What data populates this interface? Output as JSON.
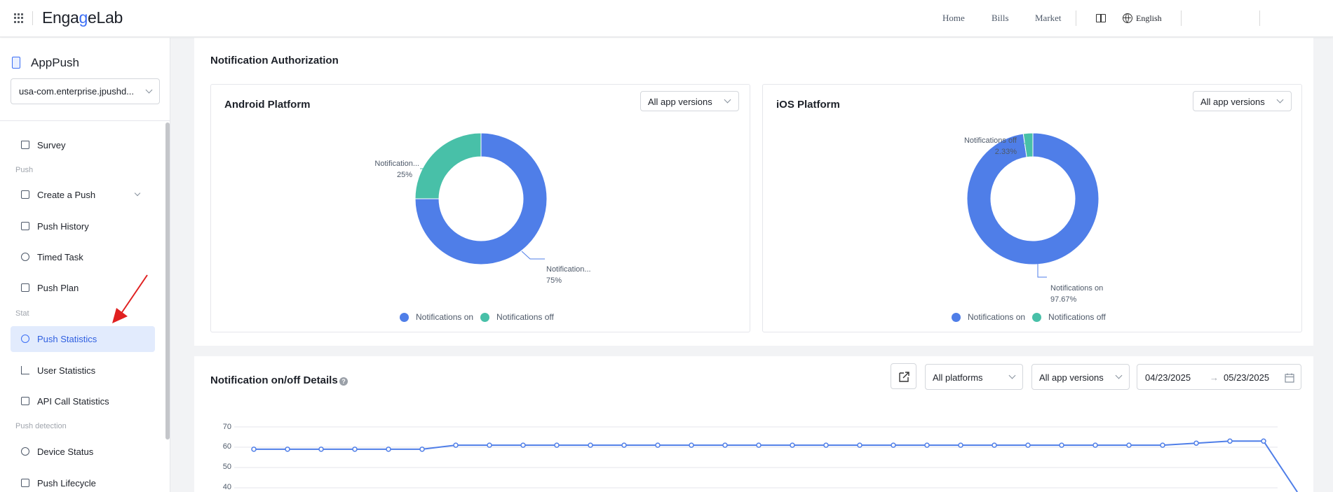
{
  "header": {
    "logo_prefix": "Enga",
    "logo_g": "g",
    "logo_suffix": "eLab",
    "nav": [
      "Home",
      "Bills",
      "Market"
    ],
    "language": "English"
  },
  "sidebar": {
    "app_title": "AppPush",
    "app_selector": "usa-com.enterprise.jpushd...",
    "groups": {
      "push": "Push",
      "stat": "Stat",
      "push_detection": "Push detection"
    },
    "items": [
      {
        "label": "Survey",
        "icon": "home-icon"
      },
      {
        "label": "Create a Push",
        "icon": "file-plus-icon"
      },
      {
        "label": "Push History",
        "icon": "file-history-icon"
      },
      {
        "label": "Timed Task",
        "icon": "clock-icon"
      },
      {
        "label": "Push Plan",
        "icon": "plan-icon"
      },
      {
        "label": "Push Statistics",
        "icon": "pie-icon",
        "active": true
      },
      {
        "label": "User Statistics",
        "icon": "bar-chart-icon"
      },
      {
        "label": "API Call Statistics",
        "icon": "monitor-icon"
      },
      {
        "label": "Device Status",
        "icon": "search-icon"
      },
      {
        "label": "Push Lifecycle",
        "icon": "lifecycle-icon"
      }
    ]
  },
  "authorization": {
    "title": "Notification Authorization",
    "android": {
      "title": "Android Platform",
      "version_select": "All app versions",
      "label_off": "Notification...",
      "pct_off": "25%",
      "label_on": "Notification...",
      "pct_on": "75%"
    },
    "ios": {
      "title": "iOS Platform",
      "version_select": "All app versions",
      "label_off": "Notifications off",
      "pct_off": "2.33%",
      "label_on": "Notifications on",
      "pct_on": "97.67%"
    },
    "legend_on": "Notifications on",
    "legend_off": "Notifications off",
    "colors": {
      "on": "#4f7ee8",
      "off": "#48c0a8"
    }
  },
  "details": {
    "title": "Notification on/off Details",
    "info": "?",
    "platform_select": "All platforms",
    "version_select": "All app versions",
    "date_start": "04/23/2025",
    "date_sep": "→",
    "date_end": "05/23/2025"
  },
  "chart_data": [
    {
      "type": "pie",
      "title": "Android Platform",
      "labels": [
        "Notifications on",
        "Notifications off"
      ],
      "values": [
        75,
        25
      ]
    },
    {
      "type": "pie",
      "title": "iOS Platform",
      "labels": [
        "Notifications on",
        "Notifications off"
      ],
      "values": [
        97.67,
        2.33
      ]
    },
    {
      "type": "line",
      "title": "Notification on/off Details",
      "y_ticks": [
        "70",
        "60",
        "50",
        "40"
      ],
      "ylim": [
        40,
        70
      ],
      "series": [
        {
          "values": [
            59,
            59,
            59,
            59,
            59,
            59,
            61,
            61,
            61,
            61,
            61,
            61,
            61,
            61,
            61,
            61,
            61,
            61,
            61,
            61,
            61,
            61,
            61,
            61,
            61,
            61,
            61,
            61,
            62,
            63,
            63,
            38
          ]
        }
      ],
      "grid": true
    }
  ]
}
